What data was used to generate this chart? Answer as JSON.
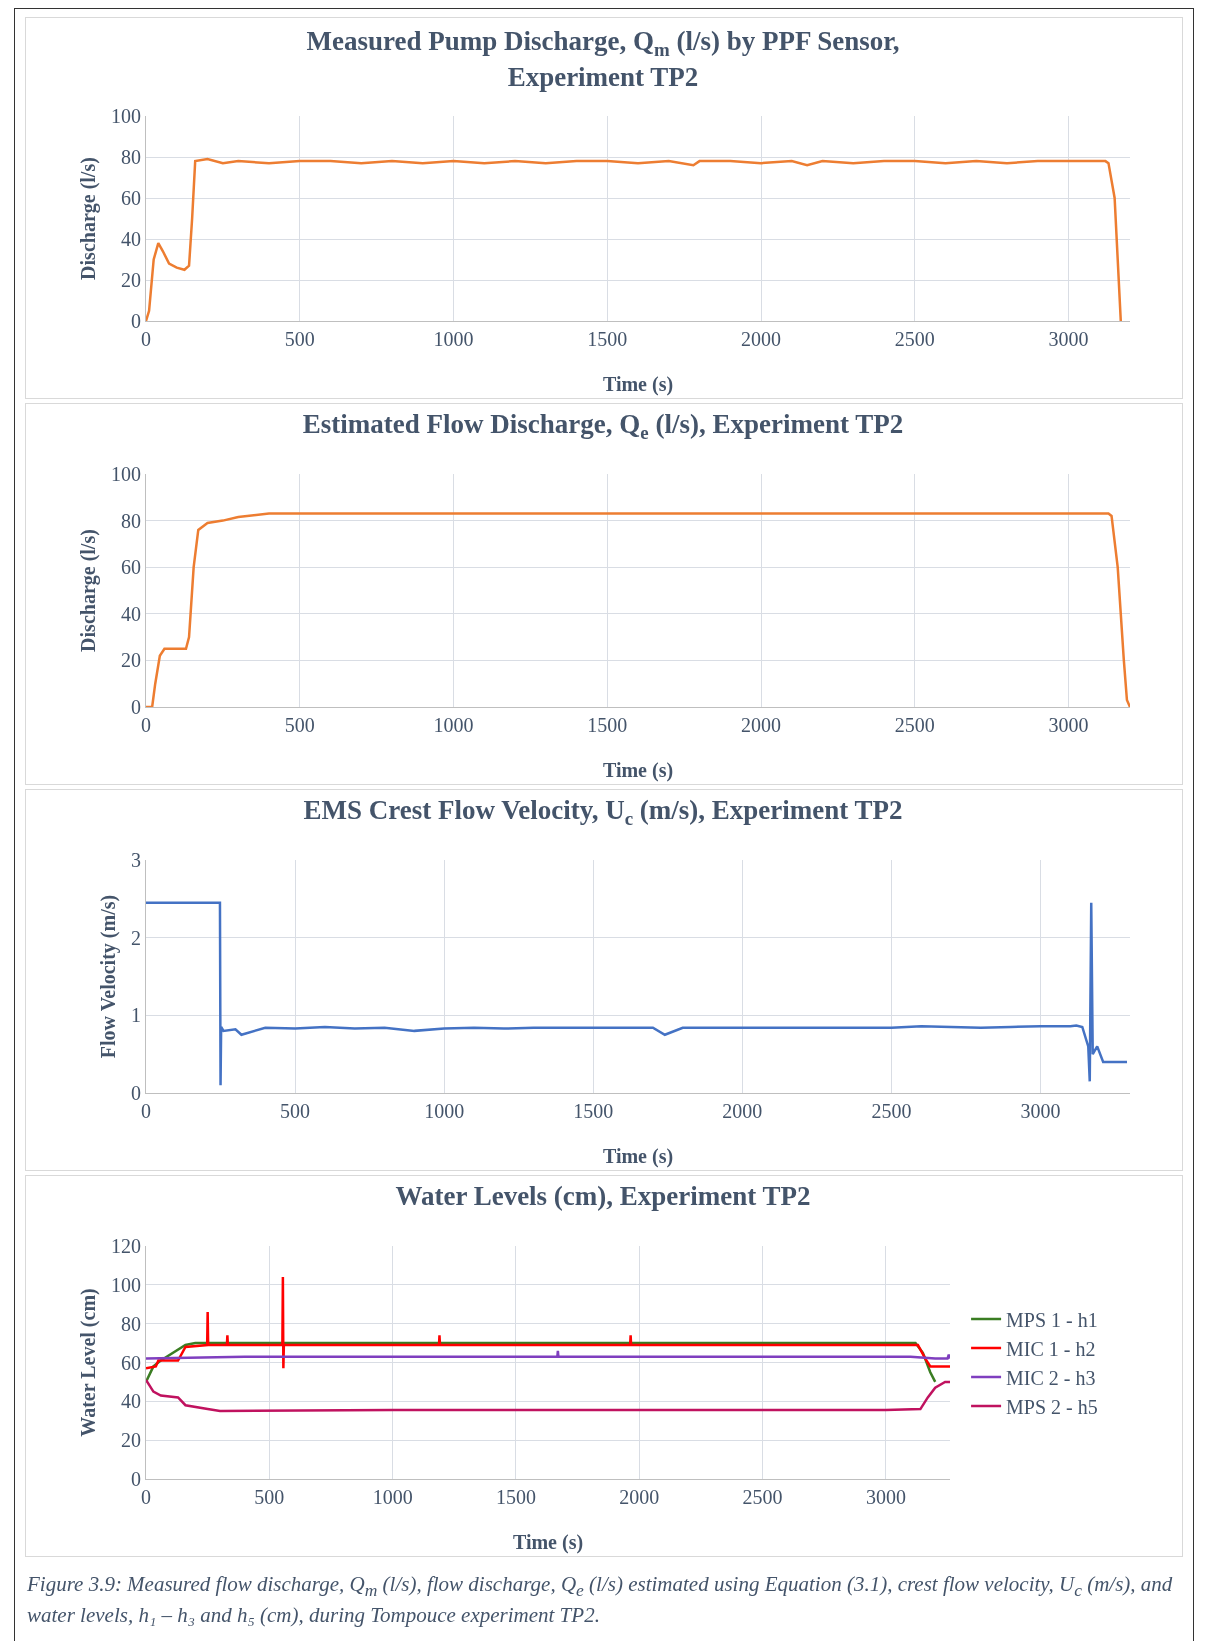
{
  "chart_data": [
    {
      "type": "line",
      "title": "Measured Pump Discharge, Q$_{m}$ (l/s) by PPF Sensor,\nExperiment TP2",
      "xlabel": "Time (s)",
      "ylabel": "Discharge (l/s)",
      "xlim": [
        0,
        3200
      ],
      "xticks": [
        0,
        500,
        1000,
        1500,
        2000,
        2500,
        3000
      ],
      "ylim": [
        0,
        100
      ],
      "yticks": [
        0,
        20,
        40,
        60,
        80,
        100
      ],
      "grid": true,
      "legend": false,
      "marker": "none",
      "line_style": "solid",
      "series": [
        {
          "color": "#ed7d31",
          "x": [
            0,
            10,
            25,
            40,
            55,
            75,
            100,
            125,
            140,
            150,
            160,
            200,
            250,
            300,
            400,
            500,
            600,
            700,
            800,
            900,
            1000,
            1100,
            1200,
            1300,
            1400,
            1500,
            1600,
            1700,
            1780,
            1800,
            1900,
            2000,
            2100,
            2150,
            2200,
            2300,
            2400,
            2500,
            2600,
            2700,
            2800,
            2900,
            3000,
            3100,
            3120,
            3130,
            3150,
            3170
          ],
          "values": [
            0,
            5,
            30,
            38,
            34,
            28,
            26,
            25,
            27,
            50,
            78,
            79,
            77,
            78,
            77,
            78,
            78,
            77,
            78,
            77,
            78,
            77,
            78,
            77,
            78,
            78,
            77,
            78,
            76,
            78,
            78,
            77,
            78,
            76,
            78,
            77,
            78,
            78,
            77,
            78,
            77,
            78,
            78,
            78,
            78,
            77,
            60,
            0
          ]
        }
      ]
    },
    {
      "type": "line",
      "title": "Estimated Flow Discharge, Q$_{e}$ (l/s), Experiment TP2",
      "xlabel": "Time (s)",
      "ylabel": "Discharge (l/s)",
      "xlim": [
        0,
        3200
      ],
      "xticks": [
        0,
        500,
        1000,
        1500,
        2000,
        2500,
        3000
      ],
      "ylim": [
        0,
        100
      ],
      "yticks": [
        0,
        20,
        40,
        60,
        80,
        100
      ],
      "grid": true,
      "legend": false,
      "marker": "none",
      "line_style": "solid",
      "series": [
        {
          "color": "#ed7d31",
          "x": [
            0,
            20,
            30,
            45,
            60,
            130,
            140,
            155,
            170,
            200,
            250,
            300,
            400,
            500,
            1000,
            1500,
            2000,
            2500,
            3000,
            3130,
            3140,
            3160,
            3180,
            3190,
            3200
          ],
          "values": [
            0,
            0,
            10,
            22,
            25,
            25,
            30,
            60,
            76,
            79,
            80,
            81.5,
            83,
            83,
            83,
            83,
            83,
            83,
            83,
            83,
            82,
            60,
            20,
            3,
            0
          ]
        }
      ]
    },
    {
      "type": "line",
      "title": "EMS Crest Flow Velocity, U$_{c}$ (m/s), Experiment TP2",
      "xlabel": "Time (s)",
      "ylabel": "Flow Velocity (m/s)",
      "xlim": [
        0,
        3300
      ],
      "xticks": [
        0,
        500,
        1000,
        1500,
        2000,
        2500,
        3000
      ],
      "ylim": [
        0,
        3
      ],
      "yticks": [
        0,
        1,
        2,
        3
      ],
      "grid": true,
      "legend": false,
      "marker": "none",
      "line_style": "solid",
      "series": [
        {
          "color": "#4472c4",
          "x": [
            0,
            248,
            250,
            252,
            260,
            300,
            320,
            400,
            500,
            600,
            700,
            800,
            900,
            1000,
            1100,
            1200,
            1300,
            1400,
            1500,
            1600,
            1700,
            1740,
            1800,
            1900,
            2000,
            2100,
            2200,
            2300,
            2400,
            2500,
            2600,
            2700,
            2800,
            2900,
            3000,
            3100,
            3120,
            3140,
            3160,
            3165,
            3170,
            3175,
            3190,
            3210,
            3290
          ],
          "values": [
            2.45,
            2.45,
            0.1,
            0.85,
            0.8,
            0.82,
            0.75,
            0.84,
            0.83,
            0.85,
            0.83,
            0.84,
            0.8,
            0.83,
            0.84,
            0.83,
            0.84,
            0.84,
            0.84,
            0.84,
            0.84,
            0.75,
            0.84,
            0.84,
            0.84,
            0.84,
            0.84,
            0.84,
            0.84,
            0.84,
            0.86,
            0.85,
            0.84,
            0.85,
            0.86,
            0.86,
            0.87,
            0.85,
            0.6,
            0.15,
            2.45,
            0.5,
            0.6,
            0.4,
            0.4
          ]
        }
      ]
    },
    {
      "type": "line",
      "title": "Water Levels (cm), Experiment TP2",
      "xlabel": "Time (s)",
      "ylabel": "Water Level (cm)",
      "xlim": [
        0,
        3260
      ],
      "xticks": [
        0,
        500,
        1000,
        1500,
        2000,
        2500,
        3000
      ],
      "ylim": [
        0,
        120
      ],
      "yticks": [
        0,
        20,
        40,
        60,
        80,
        100,
        120
      ],
      "grid": true,
      "legend": "right",
      "marker": "none",
      "line_style": "solid",
      "annotations": [
        "Figure 3.9: Measured flow discharge, Q$_{m}$ (l/s), flow discharge, Q$_{e}$ (l/s) estimated using Equation (3.1), crest flow velocity, U$_{c}$ (m/s), and water levels, h₁ – h₃ and h₅ (cm), during Tompouce experiment TP2."
      ],
      "series": [
        {
          "name": "MPS 1 - h1",
          "color": "#3a7d22",
          "x": [
            0,
            30,
            60,
            160,
            200,
            500,
            1000,
            1500,
            2000,
            2500,
            3000,
            3120,
            3150,
            3180,
            3200
          ],
          "values": [
            50,
            58,
            61,
            69,
            70,
            70,
            70,
            70,
            70,
            70,
            70,
            70,
            65,
            55,
            50
          ]
        },
        {
          "name": "MIC 1 - h2",
          "color": "#ff0000",
          "x": [
            0,
            40,
            50,
            130,
            160,
            248,
            250,
            252,
            328,
            330,
            332,
            553,
            555,
            557,
            559,
            1188,
            1190,
            1192,
            1963,
            1965,
            1967,
            3130,
            3160,
            3180,
            3260
          ],
          "values": [
            57,
            58,
            61,
            61,
            68,
            69,
            86,
            69,
            69,
            74,
            69,
            69,
            104,
            57,
            69,
            69,
            74,
            69,
            69,
            74,
            69,
            69,
            62,
            58,
            58
          ]
        },
        {
          "name": "MIC 2 - h3",
          "color": "#7f3fbf",
          "x": [
            0,
            400,
            1000,
            1668,
            1670,
            1672,
            2500,
            3100,
            3200,
            3250,
            3255,
            3260
          ],
          "values": [
            62,
            63,
            63,
            63,
            66,
            63,
            63,
            63,
            62,
            62,
            64,
            62
          ]
        },
        {
          "name": "MPS 2 - h5",
          "color": "#c0125f",
          "x": [
            0,
            30,
            60,
            130,
            160,
            250,
            300,
            1000,
            2000,
            3000,
            3140,
            3170,
            3200,
            3240,
            3260
          ],
          "values": [
            51,
            45,
            43,
            42,
            38,
            36,
            35,
            35.5,
            35.5,
            35.5,
            36,
            42,
            47,
            50,
            50
          ]
        }
      ]
    }
  ]
}
